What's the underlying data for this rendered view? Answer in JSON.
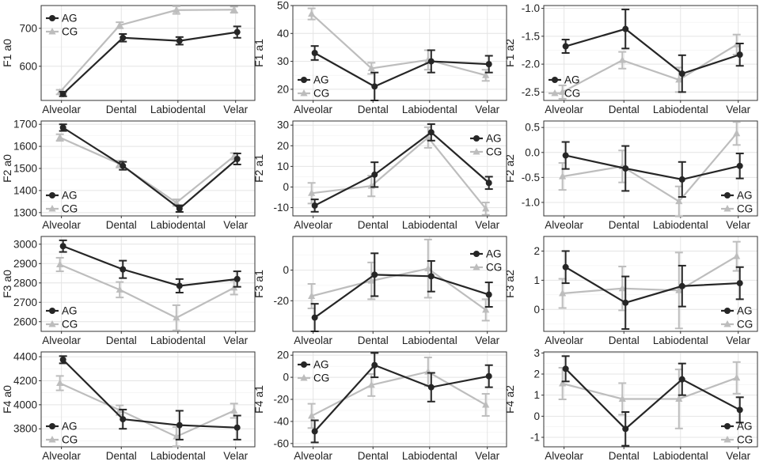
{
  "figure": {
    "categories": [
      "Alveolar",
      "Dental",
      "Labiodental",
      "Velar"
    ],
    "series_names": [
      "AG",
      "CG"
    ],
    "colors": {
      "AG": "#262626",
      "CG": "#bdbdbd"
    }
  },
  "chart_data": [
    {
      "type": "line",
      "ylabel": "F1 a0",
      "ylim": [
        510,
        760
      ],
      "yticks": [
        600,
        700
      ],
      "legend": "top-left",
      "categories": [
        "Alveolar",
        "Dental",
        "Labiodental",
        "Velar"
      ],
      "series": [
        {
          "name": "AG",
          "values": [
            527,
            675,
            667,
            690
          ],
          "err": [
            6,
            10,
            10,
            15
          ]
        },
        {
          "name": "CG",
          "values": [
            532,
            708,
            748,
            749
          ],
          "err": [
            6,
            8,
            10,
            8
          ]
        }
      ]
    },
    {
      "type": "line",
      "ylabel": "F1 a1",
      "ylim": [
        16,
        50
      ],
      "yticks": [
        20,
        30,
        40,
        50
      ],
      "legend": "bottom-left",
      "categories": [
        "Alveolar",
        "Dental",
        "Labiodental",
        "Velar"
      ],
      "series": [
        {
          "name": "AG",
          "values": [
            33,
            21,
            30,
            29
          ],
          "err": [
            2.5,
            5,
            4,
            3
          ]
        },
        {
          "name": "CG",
          "values": [
            47,
            27.5,
            30.5,
            25
          ],
          "err": [
            2,
            2,
            3.5,
            2
          ]
        }
      ]
    },
    {
      "type": "line",
      "ylabel": "F1 a2",
      "ylim": [
        -2.65,
        -0.95
      ],
      "yticks": [
        -2.5,
        -2.0,
        -1.5,
        -1.0
      ],
      "ytick_labels": [
        "-2.5",
        "-2.0",
        "-1.5",
        "-1.0"
      ],
      "legend": "bottom-left",
      "categories": [
        "Alveolar",
        "Dental",
        "Labiodental",
        "Velar"
      ],
      "series": [
        {
          "name": "AG",
          "values": [
            -1.68,
            -1.37,
            -2.17,
            -1.83
          ],
          "err": [
            0.12,
            0.35,
            0.33,
            0.2
          ]
        },
        {
          "name": "CG",
          "values": [
            -2.5,
            -1.93,
            -2.28,
            -1.65
          ],
          "err": [
            0.12,
            0.15,
            0.22,
            0.18
          ]
        }
      ]
    },
    {
      "type": "line",
      "ylabel": "F2 a0",
      "ylim": [
        1285,
        1715
      ],
      "yticks": [
        1300,
        1400,
        1500,
        1600,
        1700
      ],
      "legend": "bottom-left",
      "categories": [
        "Alveolar",
        "Dental",
        "Labiodental",
        "Velar"
      ],
      "series": [
        {
          "name": "AG",
          "values": [
            1685,
            1512,
            1318,
            1543
          ],
          "err": [
            15,
            18,
            15,
            25
          ]
        },
        {
          "name": "CG",
          "values": [
            1640,
            1520,
            1345,
            1555
          ],
          "err": [
            15,
            15,
            15,
            15
          ]
        }
      ]
    },
    {
      "type": "line",
      "ylabel": "F2 a1",
      "ylim": [
        -14,
        32
      ],
      "yticks": [
        -10,
        0,
        10,
        20,
        30
      ],
      "legend": "top-right",
      "categories": [
        "Alveolar",
        "Dental",
        "Labiodental",
        "Velar"
      ],
      "series": [
        {
          "name": "AG",
          "values": [
            -9,
            6,
            26.5,
            2
          ],
          "err": [
            3,
            6,
            4,
            3
          ]
        },
        {
          "name": "CG",
          "values": [
            -3,
            0.5,
            24,
            -10.5
          ],
          "err": [
            5,
            5,
            5,
            3
          ]
        }
      ]
    },
    {
      "type": "line",
      "ylabel": "F2 a2",
      "ylim": [
        -1.27,
        0.63
      ],
      "yticks": [
        -1.0,
        -0.5,
        0.0,
        0.5
      ],
      "ytick_labels": [
        "-1.0",
        "-0.5",
        "0.0",
        "0.5"
      ],
      "legend": "bottom-right",
      "categories": [
        "Alveolar",
        "Dental",
        "Labiodental",
        "Velar"
      ],
      "series": [
        {
          "name": "AG",
          "values": [
            -0.06,
            -0.32,
            -0.54,
            -0.27
          ],
          "err": [
            0.27,
            0.45,
            0.35,
            0.25
          ]
        },
        {
          "name": "CG",
          "values": [
            -0.48,
            -0.28,
            -0.98,
            0.38
          ],
          "err": [
            0.27,
            0.32,
            0.3,
            0.23
          ]
        }
      ]
    },
    {
      "type": "line",
      "ylabel": "F3 a0",
      "ylim": [
        2550,
        3040
      ],
      "yticks": [
        2600,
        2700,
        2800,
        2900,
        3000
      ],
      "legend": "bottom-left",
      "categories": [
        "Alveolar",
        "Dental",
        "Labiodental",
        "Velar"
      ],
      "series": [
        {
          "name": "AG",
          "values": [
            2990,
            2870,
            2785,
            2820
          ],
          "err": [
            30,
            45,
            35,
            40
          ]
        },
        {
          "name": "CG",
          "values": [
            2895,
            2765,
            2620,
            2775
          ],
          "err": [
            35,
            40,
            65,
            35
          ]
        }
      ]
    },
    {
      "type": "line",
      "ylabel": "F3 a1",
      "ylim": [
        -40,
        22
      ],
      "yticks": [
        -20,
        0
      ],
      "legend": "top-right",
      "categories": [
        "Alveolar",
        "Dental",
        "Labiodental",
        "Velar"
      ],
      "series": [
        {
          "name": "AG",
          "values": [
            -31,
            -3,
            -4,
            -16
          ],
          "err": [
            9,
            14,
            10,
            8
          ]
        },
        {
          "name": "CG",
          "values": [
            -17,
            -7,
            1,
            -26
          ],
          "err": [
            8,
            12,
            19,
            7
          ]
        }
      ]
    },
    {
      "type": "line",
      "ylabel": "F3 a2",
      "ylim": [
        -0.75,
        2.5
      ],
      "yticks": [
        0,
        1,
        2
      ],
      "legend": "bottom-right",
      "categories": [
        "Alveolar",
        "Dental",
        "Labiodental",
        "Velar"
      ],
      "series": [
        {
          "name": "AG",
          "values": [
            1.45,
            0.23,
            0.8,
            0.9
          ],
          "err": [
            0.55,
            0.9,
            0.7,
            0.55
          ]
        },
        {
          "name": "CG",
          "values": [
            0.55,
            0.72,
            0.65,
            1.82
          ],
          "err": [
            0.5,
            0.75,
            1.3,
            0.5
          ]
        }
      ]
    },
    {
      "type": "line",
      "ylabel": "F4 a0",
      "ylim": [
        3650,
        4440
      ],
      "yticks": [
        3800,
        4000,
        4200,
        4400
      ],
      "legend": "bottom-left",
      "categories": [
        "Alveolar",
        "Dental",
        "Labiodental",
        "Velar"
      ],
      "series": [
        {
          "name": "AG",
          "values": [
            4375,
            3880,
            3830,
            3810
          ],
          "err": [
            30,
            80,
            120,
            100
          ]
        },
        {
          "name": "CG",
          "values": [
            4180,
            3955,
            3735,
            3950
          ],
          "err": [
            60,
            40,
            80,
            60
          ]
        }
      ]
    },
    {
      "type": "line",
      "ylabel": "F4 a1",
      "ylim": [
        -63,
        23
      ],
      "yticks": [
        -60,
        -40,
        -20,
        0,
        20
      ],
      "legend": "top-left",
      "categories": [
        "Alveolar",
        "Dental",
        "Labiodental",
        "Velar"
      ],
      "series": [
        {
          "name": "AG",
          "values": [
            -49,
            11,
            -9,
            1
          ],
          "err": [
            10,
            11,
            13,
            10
          ]
        },
        {
          "name": "CG",
          "values": [
            -35,
            -7,
            5,
            -25
          ],
          "err": [
            11,
            10,
            13,
            10
          ]
        }
      ]
    },
    {
      "type": "line",
      "ylabel": "F4 a2",
      "ylim": [
        -1.45,
        3.05
      ],
      "yticks": [
        -1,
        0,
        1,
        2,
        3
      ],
      "legend": "bottom-right",
      "categories": [
        "Alveolar",
        "Dental",
        "Labiodental",
        "Velar"
      ],
      "series": [
        {
          "name": "AG",
          "values": [
            2.25,
            -0.6,
            1.75,
            0.3
          ],
          "err": [
            0.6,
            0.8,
            0.75,
            0.6
          ]
        },
        {
          "name": "CG",
          "values": [
            1.55,
            0.82,
            0.82,
            1.82
          ],
          "err": [
            0.75,
            0.75,
            1.4,
            0.75
          ]
        }
      ]
    }
  ]
}
